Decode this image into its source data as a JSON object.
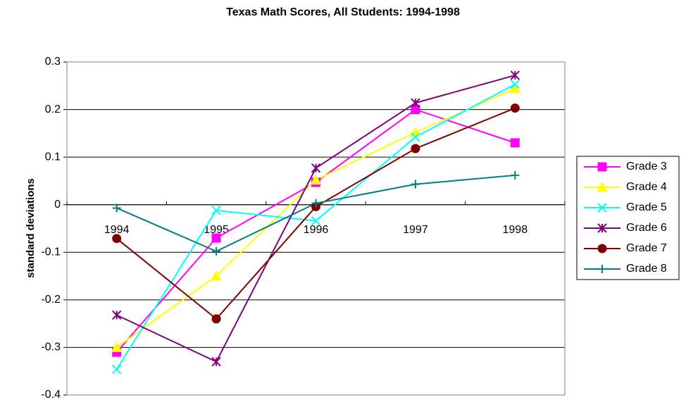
{
  "chart_data": {
    "type": "line",
    "title": "Texas Math Scores, All Students:  1994-1998",
    "y_label": "standard deviations",
    "categories": [
      "1994",
      "1995",
      "1996",
      "1997",
      "1998"
    ],
    "series": [
      {
        "name": "Grade 3",
        "color": "#ff00ff",
        "marker": "square",
        "values": [
          -0.31,
          -0.07,
          0.047,
          0.2,
          0.13
        ]
      },
      {
        "name": "Grade 4",
        "color": "#ffff00",
        "marker": "triangle",
        "values": [
          -0.3,
          -0.15,
          0.052,
          0.152,
          0.244
        ]
      },
      {
        "name": "Grade 5",
        "color": "#00ffff",
        "marker": "x",
        "values": [
          -0.346,
          -0.012,
          -0.034,
          0.142,
          0.253
        ]
      },
      {
        "name": "Grade 6",
        "color": "#800080",
        "marker": "star",
        "values": [
          -0.232,
          -0.33,
          0.077,
          0.214,
          0.272
        ]
      },
      {
        "name": "Grade 7",
        "color": "#800000",
        "marker": "circle",
        "values": [
          -0.071,
          -0.24,
          -0.004,
          0.118,
          0.203
        ]
      },
      {
        "name": "Grade 8",
        "color": "#008080",
        "marker": "plus",
        "values": [
          -0.007,
          -0.098,
          0.003,
          0.043,
          0.062
        ]
      }
    ],
    "ylim": [
      -0.4,
      0.3
    ],
    "yticks": [
      -0.4,
      -0.3,
      -0.2,
      -0.1,
      0,
      0.1,
      0.2,
      0.3
    ],
    "grid": true,
    "legend": "right"
  }
}
